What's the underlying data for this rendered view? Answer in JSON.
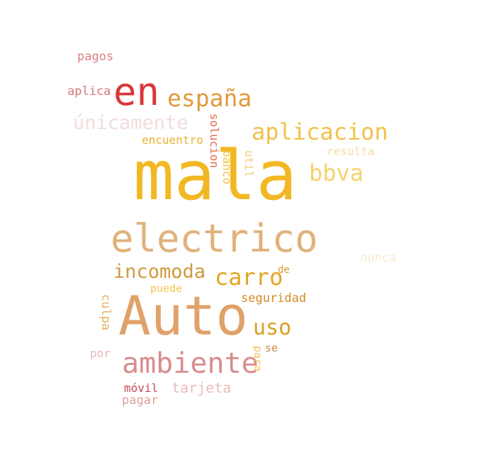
{
  "words": [
    {
      "text": "mala",
      "color": "#f2b824"
    },
    {
      "text": "Auto",
      "color": "#e0a26a"
    },
    {
      "text": "electrico",
      "color": "#e0b27a"
    },
    {
      "text": "en",
      "color": "#d9363a"
    },
    {
      "text": "ambiente",
      "color": "#d98c8c"
    },
    {
      "text": "aplicacion",
      "color": "#f2c14a"
    },
    {
      "text": "españa",
      "color": "#e29a3c"
    },
    {
      "text": "únicamente",
      "color": "#f2dcdc"
    },
    {
      "text": "bbva",
      "color": "#f5d36b"
    },
    {
      "text": "carro",
      "color": "#e3a423"
    },
    {
      "text": "incomoda",
      "color": "#cf9a3e"
    },
    {
      "text": "uso",
      "color": "#d8a020"
    },
    {
      "text": "tarjeta",
      "color": "#edbcbc"
    },
    {
      "text": "seguridad",
      "color": "#d38a22"
    },
    {
      "text": "culpa",
      "color": "#e3b15e"
    },
    {
      "text": "pagos",
      "color": "#d97f80"
    },
    {
      "text": "aplica",
      "color": "#d9787c"
    },
    {
      "text": "encuentro",
      "color": "#eab230"
    },
    {
      "text": "solucion",
      "color": "#e26d4e"
    },
    {
      "text": "banco",
      "color": "#f2c247"
    },
    {
      "text": "util",
      "color": "#f3d080"
    },
    {
      "text": "resulta",
      "color": "#f5dda8"
    },
    {
      "text": "nunca",
      "color": "#f9eacb"
    },
    {
      "text": "de",
      "color": "#d99c2e"
    },
    {
      "text": "puede",
      "color": "#f2c44d"
    },
    {
      "text": "por",
      "color": "#e8b6b6"
    },
    {
      "text": "para",
      "color": "#f0c45a"
    },
    {
      "text": "se",
      "color": "#d28c4a"
    },
    {
      "text": "móvil",
      "color": "#c94a55"
    },
    {
      "text": "pagar",
      "color": "#e0a0a0"
    }
  ]
}
